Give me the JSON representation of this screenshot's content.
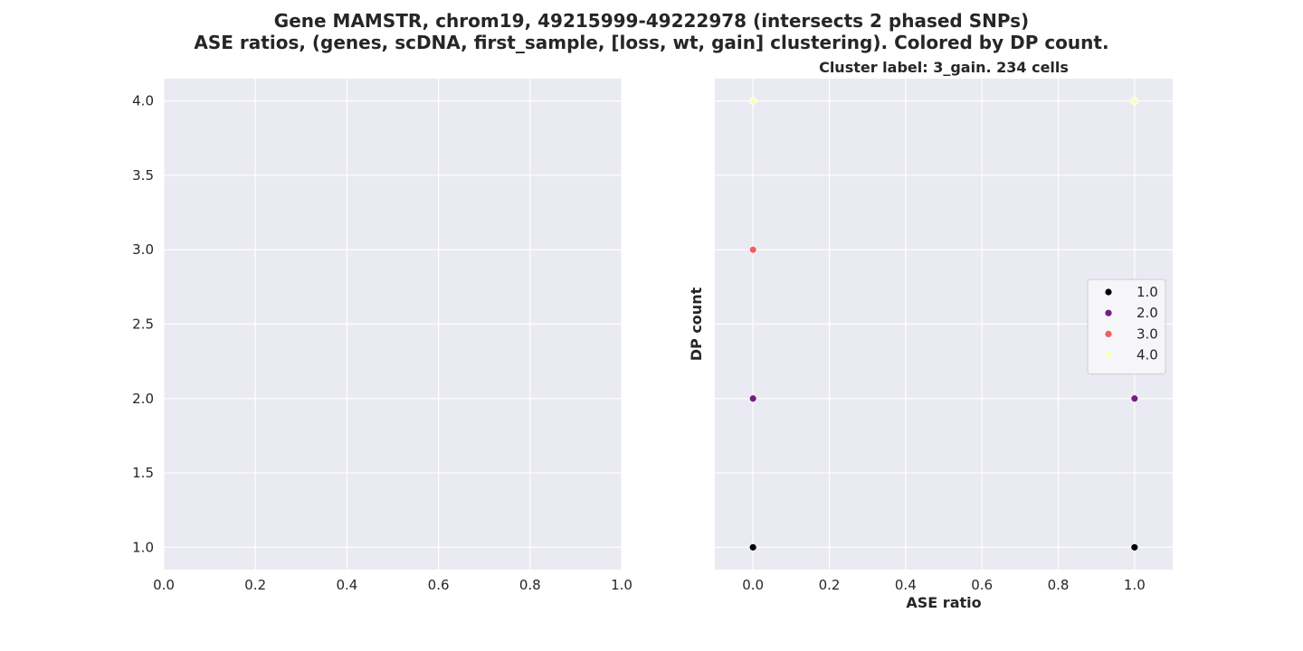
{
  "figure": {
    "title_line1": "Gene MAMSTR, chrom19, 49215999-49222978 (intersects 2 phased SNPs)",
    "title_line2": "ASE ratios, (genes, scDNA, first_sample, [loss, wt, gain] clustering). Colored by DP count."
  },
  "chart_data": [
    {
      "type": "scatter",
      "title": "",
      "xlabel": "",
      "ylabel": "",
      "xlim": [
        0.0,
        1.0
      ],
      "ylim": [
        0.85,
        4.15
      ],
      "xticks": [
        "0.0",
        "0.2",
        "0.4",
        "0.6",
        "0.8",
        "1.0"
      ],
      "yticks": [
        "1.0",
        "1.5",
        "2.0",
        "2.5",
        "3.0",
        "3.5",
        "4.0"
      ],
      "grid": true,
      "points": []
    },
    {
      "type": "scatter",
      "title": "Cluster label: 3_gain. 234 cells",
      "xlabel": "ASE ratio",
      "ylabel": "DP count",
      "xlim": [
        -0.1,
        1.1
      ],
      "ylim": [
        0.85,
        4.15
      ],
      "xticks": [
        "0.0",
        "0.2",
        "0.4",
        "0.6",
        "0.8",
        "1.0"
      ],
      "yticks": [],
      "grid": true,
      "legend_position": "center-right",
      "legend": [
        {
          "label": "1.0",
          "color": "#000004"
        },
        {
          "label": "2.0",
          "color": "#721f81"
        },
        {
          "label": "3.0",
          "color": "#f1605d"
        },
        {
          "label": "4.0",
          "color": "#fcfdbf"
        }
      ],
      "points": [
        {
          "x": 0.0,
          "y": 1.0,
          "color": "#000004"
        },
        {
          "x": 0.0,
          "y": 2.0,
          "color": "#721f81"
        },
        {
          "x": 0.0,
          "y": 3.0,
          "color": "#f1605d"
        },
        {
          "x": 0.0,
          "y": 4.0,
          "color": "#fcfdbf"
        },
        {
          "x": 1.0,
          "y": 1.0,
          "color": "#000004"
        },
        {
          "x": 1.0,
          "y": 2.0,
          "color": "#721f81"
        },
        {
          "x": 1.0,
          "y": 4.0,
          "color": "#fcfdbf"
        }
      ]
    }
  ],
  "style": {
    "axes_bg": "#eaeaf2",
    "grid_color": "#ffffff",
    "text_color": "#262626"
  }
}
